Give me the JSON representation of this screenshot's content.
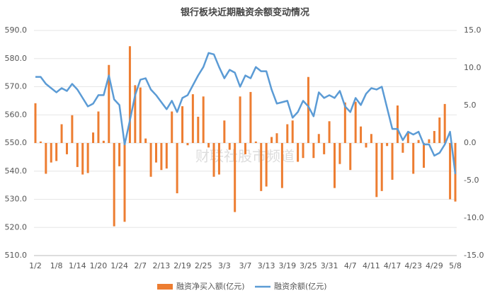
{
  "chart_data": {
    "type": "bar-line",
    "title": "银行板块近期融资余额变动情况",
    "watermark": "财联社股市频道",
    "categories": [
      "1/2",
      null,
      null,
      null,
      "1/8",
      null,
      null,
      null,
      "1/14",
      null,
      null,
      null,
      "1/20",
      null,
      null,
      null,
      "1/24",
      null,
      null,
      null,
      "2/7",
      null,
      null,
      null,
      "2/13",
      null,
      null,
      null,
      "2/19",
      null,
      null,
      null,
      "2/25",
      null,
      null,
      null,
      "3/3",
      null,
      null,
      null,
      "3/7",
      null,
      null,
      null,
      "3/13",
      null,
      null,
      null,
      "3/19",
      null,
      null,
      null,
      "3/25",
      null,
      null,
      null,
      "3/31",
      null,
      null,
      null,
      "4/7",
      null,
      null,
      null,
      "4/11",
      null,
      null,
      null,
      "4/17",
      null,
      null,
      null,
      "4/23",
      null,
      null,
      null,
      "4/29",
      null,
      null,
      null,
      "5/8"
    ],
    "series": [
      {
        "name": "融资净买入额(亿元)",
        "color": "#ed7d31",
        "axis": "y2",
        "kind": "bar",
        "values": [
          5.3,
          0.2,
          -4.1,
          -2.6,
          -2.4,
          2.5,
          -1.5,
          3.7,
          -3.2,
          -4.2,
          -4.0,
          1.4,
          4.2,
          0.3,
          10.4,
          -11.1,
          -3.1,
          -10.5,
          12.9,
          7.7,
          7.4,
          0.6,
          -4.5,
          -2.6,
          -3.6,
          -3.4,
          4.2,
          -6.7,
          4.9,
          -0.3,
          6.5,
          3.5,
          6.2,
          -0.6,
          -4.5,
          -4.2,
          3.0,
          -0.9,
          -9.2,
          6.2,
          -1.5,
          6.8,
          0.2,
          -6.4,
          -5.8,
          0.8,
          1.3,
          -6.0,
          2.5,
          3.0,
          -2.5,
          -2.0,
          8.8,
          -2.0,
          1.2,
          -1.5,
          2.9,
          -6.0,
          -2.8,
          5.4,
          -3.6,
          5.5,
          2.2,
          -0.6,
          1.2,
          -7.2,
          -6.4,
          -0.4,
          -4.9,
          5.0,
          -1.3,
          1.4,
          -4.1,
          0.4,
          -3.3,
          0.5,
          1.6,
          3.4,
          5.2,
          -7.5,
          -7.8
        ]
      },
      {
        "name": "融资余额(亿元)",
        "color": "#5b9bd5",
        "axis": "y",
        "kind": "line",
        "values": [
          573.5,
          573.5,
          571,
          569.5,
          568,
          569.5,
          568.5,
          571,
          569,
          566,
          563,
          564,
          567,
          567,
          574,
          565.5,
          563.5,
          549.5,
          558,
          567,
          572.5,
          573,
          569,
          567,
          564.5,
          562,
          565,
          561,
          566,
          567,
          570.5,
          574,
          577,
          582,
          581.5,
          577,
          573,
          576,
          575,
          570,
          574,
          573,
          577,
          575.5,
          575.5,
          569,
          564,
          564.5,
          565,
          559,
          561,
          565,
          563,
          559.5,
          568,
          566,
          567,
          566,
          568.5,
          563,
          561,
          566,
          563.5,
          567.5,
          569.5,
          569,
          570,
          562.5,
          555,
          555,
          551,
          554,
          553,
          554,
          549.5,
          549.5,
          545.5,
          546.5,
          549.5,
          554,
          539
        ]
      }
    ],
    "ylim": [
      510,
      590
    ],
    "yticks": [
      {
        "value": 510,
        "label": "510.0"
      },
      {
        "value": 520,
        "label": "520.0"
      },
      {
        "value": 530,
        "label": "530.0"
      },
      {
        "value": 540,
        "label": "540.0"
      },
      {
        "value": 550,
        "label": "550.0"
      },
      {
        "value": 560,
        "label": "560.0"
      },
      {
        "value": 570,
        "label": "570.0"
      },
      {
        "value": 580,
        "label": "580.0"
      },
      {
        "value": 590,
        "label": "590.0"
      }
    ],
    "y2lim": [
      -15,
      15
    ],
    "y2ticks": [
      {
        "value": -15,
        "label": "-15.0"
      },
      {
        "value": -10,
        "label": "-10.0"
      },
      {
        "value": -5,
        "label": "-5.0"
      },
      {
        "value": 0,
        "label": "0.0"
      },
      {
        "value": 5,
        "label": "5.0"
      },
      {
        "value": 10,
        "label": "10.0"
      },
      {
        "value": 15,
        "label": "15.0"
      }
    ],
    "grid": true,
    "legend": "bottom"
  }
}
